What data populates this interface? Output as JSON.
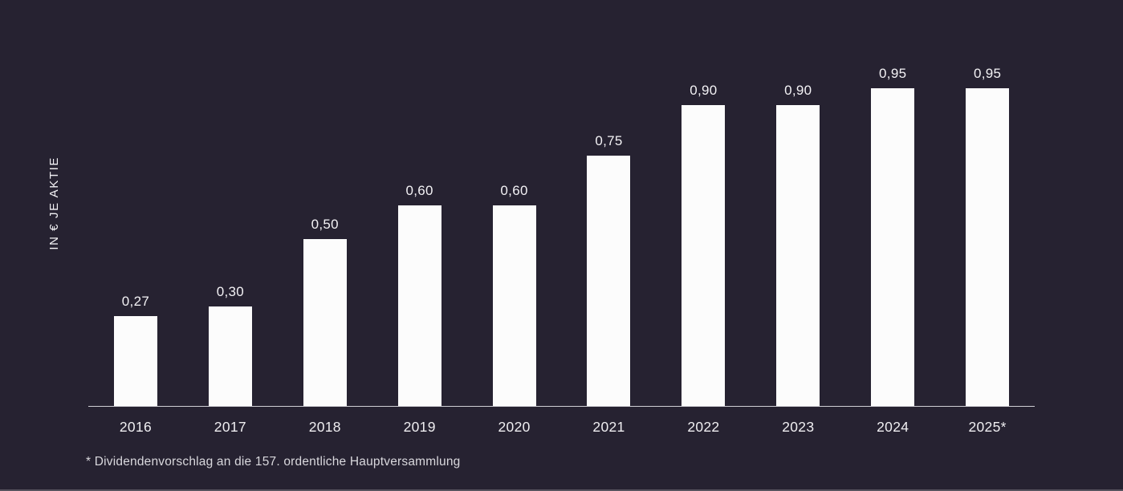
{
  "colors": {
    "background": "#262231",
    "bar": "#fcfcfc",
    "axis": "#cfced4",
    "text_primary": "#f3f2f5",
    "text_secondary": "#efeef1",
    "text_footnote": "#d9d8dd",
    "edge": "#56535e"
  },
  "chart_data": {
    "type": "bar",
    "title": "",
    "ylabel": "IN € JE AKTIE",
    "xlabel": "",
    "categories": [
      "2016",
      "2017",
      "2018",
      "2019",
      "2020",
      "2021",
      "2022",
      "2023",
      "2024",
      "2025*"
    ],
    "values": [
      0.27,
      0.3,
      0.5,
      0.6,
      0.6,
      0.75,
      0.9,
      0.9,
      0.95,
      0.95
    ],
    "value_labels": [
      "0,27",
      "0,30",
      "0,50",
      "0,60",
      "0,60",
      "0,75",
      "0,90",
      "0,90",
      "0,95",
      "0,95"
    ],
    "footnote": "* Dividendenvorschlag an die 157. ordentliche Hauptversammlung",
    "ylim": [
      0,
      0.95
    ],
    "grid": false,
    "legend": false,
    "bar_color": "#fcfcfc",
    "background_color": "#262231"
  }
}
